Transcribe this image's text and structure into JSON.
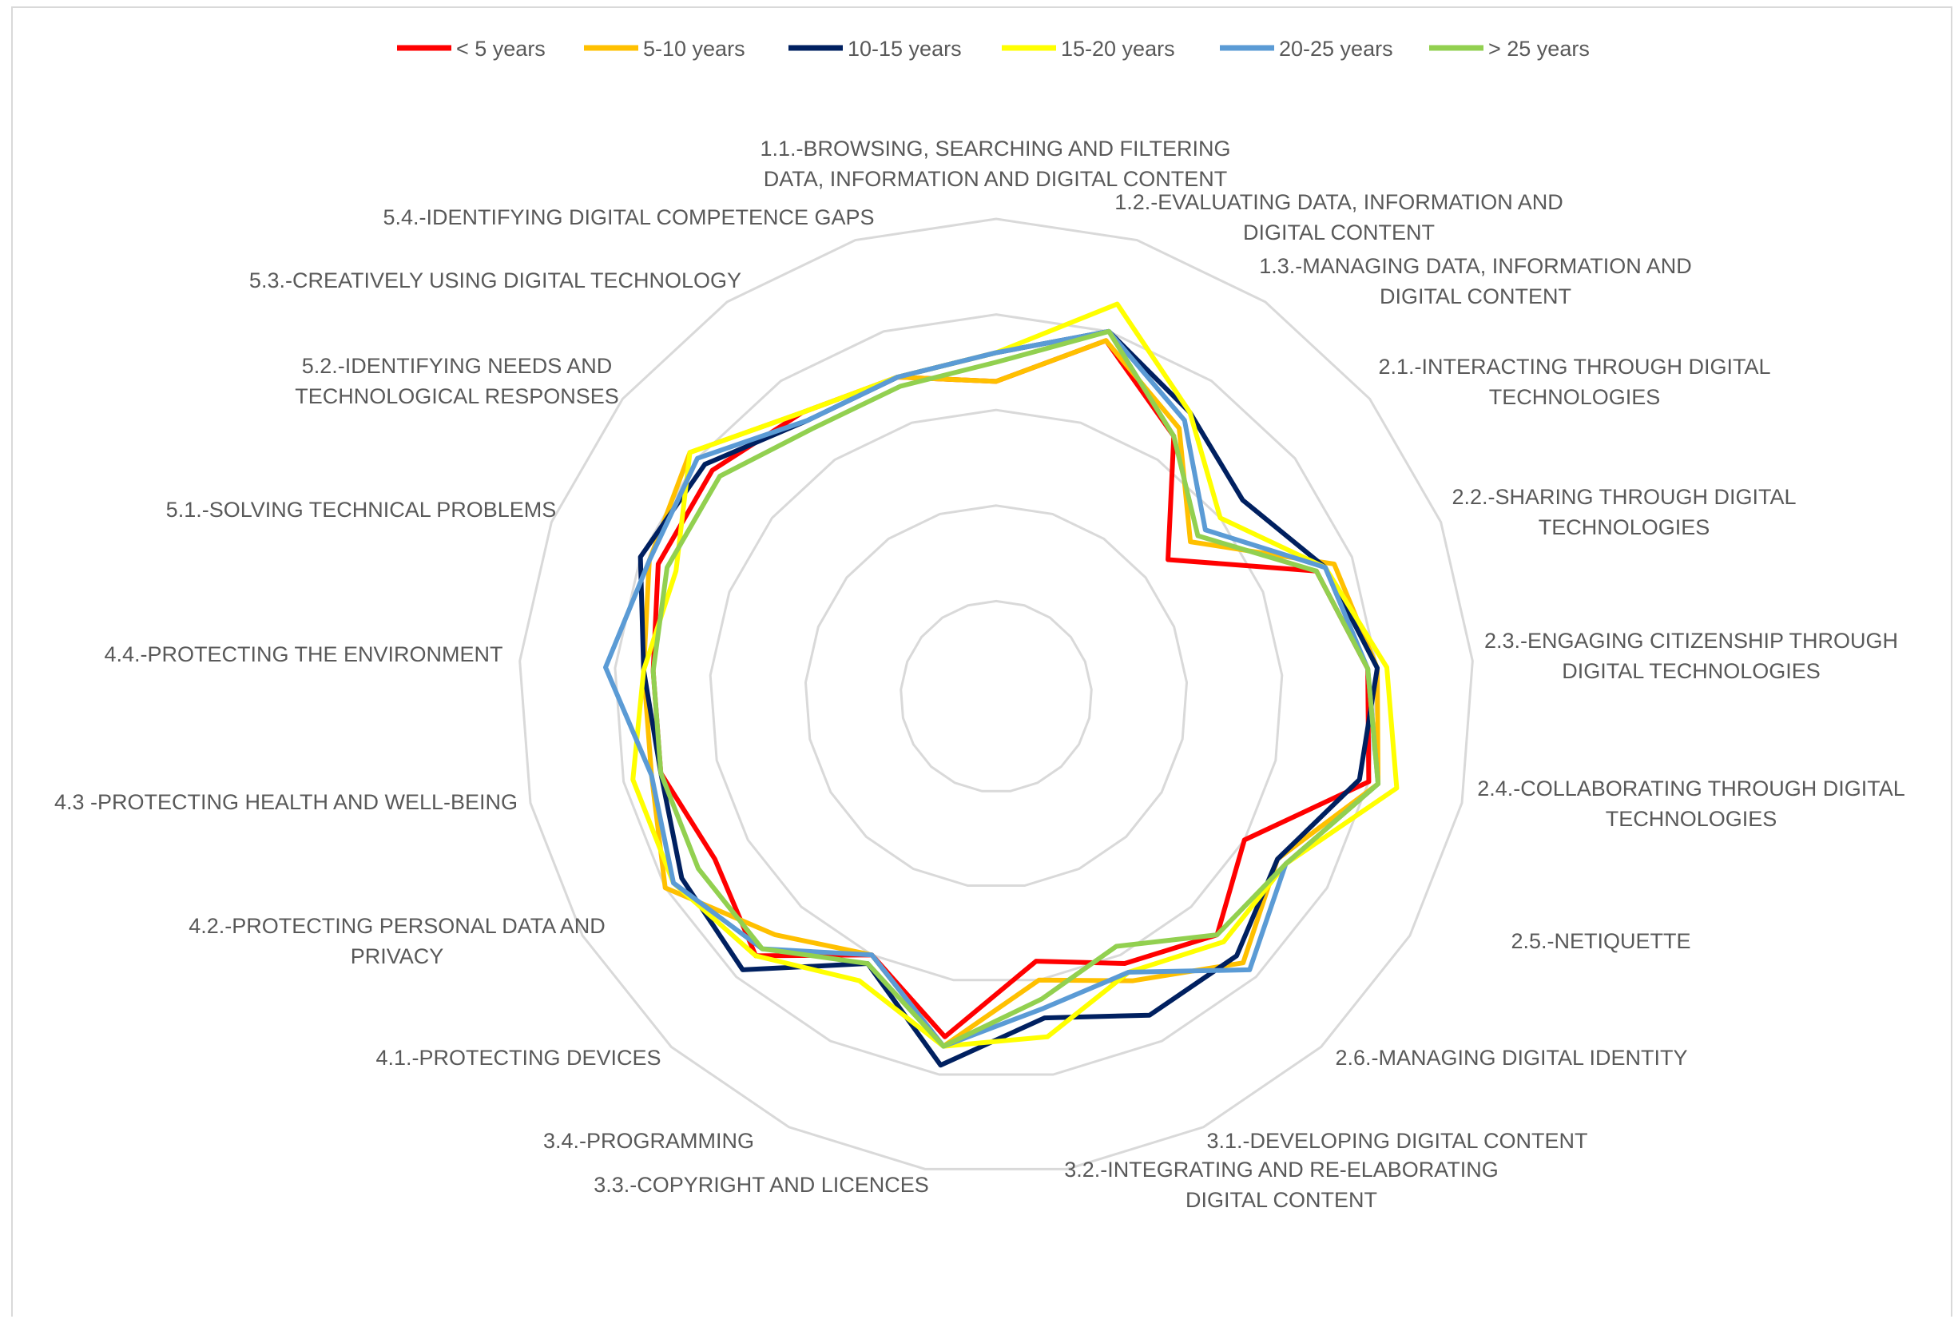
{
  "chart_data": {
    "type": "radar",
    "title": "",
    "axes": [
      [
        "1.1.-BROWSING, SEARCHING AND FILTERING",
        "DATA, INFORMATION AND DIGITAL CONTENT"
      ],
      [
        "1.2.-EVALUATING DATA, INFORMATION AND",
        "DIGITAL CONTENT"
      ],
      [
        "1.3.-MANAGING DATA, INFORMATION AND",
        "DIGITAL CONTENT"
      ],
      [
        "2.1.-INTERACTING THROUGH DIGITAL",
        "TECHNOLOGIES"
      ],
      [
        "2.2.-SHARING THROUGH DIGITAL",
        "TECHNOLOGIES"
      ],
      [
        "2.3.-ENGAGING CITIZENSHIP THROUGH",
        "DIGITAL TECHNOLOGIES"
      ],
      [
        "2.4.-COLLABORATING THROUGH DIGITAL",
        "TECHNOLOGIES"
      ],
      [
        "2.5.-NETIQUETTE"
      ],
      [
        "2.6.-MANAGING DIGITAL IDENTITY"
      ],
      [
        "3.1.-DEVELOPING DIGITAL CONTENT"
      ],
      [
        "3.2.-INTEGRATING AND RE-ELABORATING",
        "DIGITAL CONTENT"
      ],
      [
        "3.3.-COPYRIGHT AND LICENCES"
      ],
      [
        "3.4.-PROGRAMMING"
      ],
      [
        "4.1.-PROTECTING DEVICES"
      ],
      [
        "4.2.-PROTECTING PERSONAL DATA AND",
        "PRIVACY"
      ],
      [
        "4.3 -PROTECTING HEALTH AND WELL-BEING"
      ],
      [
        "4.4.-PROTECTING THE ENVIRONMENT"
      ],
      [
        "5.1.-SOLVING TECHNICAL PROBLEMS"
      ],
      [
        "5.2.-IDENTIFYING NEEDS AND",
        "TECHNOLOGICAL RESPONSES"
      ],
      [
        "5.3.-CREATIVELY USING DIGITAL TECHNOLOGY"
      ],
      [
        "5.4.-IDENTIFYING DIGITAL COMPETENCE GAPS"
      ]
    ],
    "rlim": [
      0,
      5
    ],
    "grid": true,
    "legend_position": "top",
    "series": [
      {
        "name": "< 5 years",
        "color": "#ff0000",
        "values": [
          3.3,
          3.9,
          3.3,
          2.3,
          3.6,
          3.9,
          4.0,
          3.0,
          3.4,
          3.1,
          2.8,
          3.6,
          3.0,
          3.7,
          3.4,
          3.6,
          3.6,
          3.8,
          3.8,
          3.6,
          3.5
        ]
      },
      {
        "name": "5-10 years",
        "color": "#ffc000",
        "values": [
          3.3,
          3.9,
          3.4,
          2.6,
          3.8,
          4.0,
          4.1,
          3.4,
          3.8,
          3.3,
          3.0,
          3.7,
          3.0,
          3.4,
          4.0,
          3.7,
          3.7,
          3.9,
          4.1,
          3.6,
          3.5
        ]
      },
      {
        "name": "10-15 years",
        "color": "#002060",
        "values": [
          3.6,
          4.0,
          3.6,
          3.3,
          3.7,
          4.0,
          3.9,
          3.4,
          3.7,
          3.7,
          3.4,
          3.9,
          3.1,
          3.9,
          3.8,
          3.6,
          3.7,
          4.0,
          3.9,
          3.5,
          3.5
        ]
      },
      {
        "name": "15-20 years",
        "color": "#ffff00",
        "values": [
          3.6,
          4.3,
          3.6,
          3.0,
          3.7,
          4.1,
          4.3,
          3.5,
          3.5,
          3.2,
          3.6,
          3.7,
          3.3,
          3.7,
          3.9,
          3.9,
          3.7,
          3.6,
          4.1,
          3.6,
          3.5
        ]
      },
      {
        "name": "20-25 years",
        "color": "#5b9bd5",
        "values": [
          3.6,
          4.0,
          3.5,
          2.8,
          3.7,
          3.9,
          4.1,
          3.5,
          3.9,
          3.2,
          3.3,
          3.7,
          3.0,
          3.6,
          3.9,
          3.7,
          4.1,
          3.9,
          4.0,
          3.5,
          3.5
        ]
      },
      {
        "name": "> 25 years",
        "color": "#92d050",
        "values": [
          3.5,
          4.0,
          3.3,
          2.7,
          3.6,
          3.9,
          4.1,
          3.5,
          3.4,
          2.9,
          3.2,
          3.7,
          3.1,
          3.6,
          3.6,
          3.6,
          3.6,
          3.7,
          3.7,
          3.4,
          3.4
        ]
      }
    ]
  }
}
